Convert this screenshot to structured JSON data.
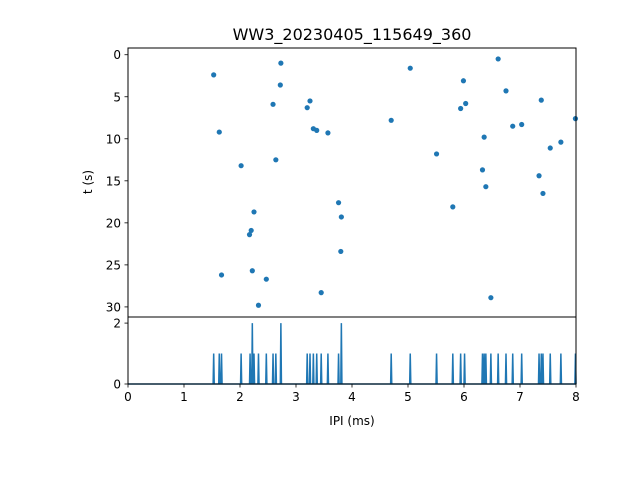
{
  "chart_data": [
    {
      "type": "scatter",
      "title": "WW3_20230405_115649_360",
      "xlabel": "",
      "ylabel": "t (s)",
      "xlim": [
        0,
        8
      ],
      "ylim": [
        31.2,
        -0.8
      ],
      "y_inverted": true,
      "yticks": [
        "0",
        "5",
        "10",
        "15",
        "20",
        "25",
        "30"
      ],
      "color": "#1f77b4",
      "points": [
        {
          "x": 1.53,
          "y": 2.4
        },
        {
          "x": 1.63,
          "y": 9.2
        },
        {
          "x": 1.67,
          "y": 26.2
        },
        {
          "x": 2.02,
          "y": 13.2
        },
        {
          "x": 2.17,
          "y": 21.4
        },
        {
          "x": 2.2,
          "y": 20.9
        },
        {
          "x": 2.22,
          "y": 25.7
        },
        {
          "x": 2.25,
          "y": 18.7
        },
        {
          "x": 2.33,
          "y": 29.8
        },
        {
          "x": 2.47,
          "y": 26.7
        },
        {
          "x": 2.59,
          "y": 5.9
        },
        {
          "x": 2.64,
          "y": 12.5
        },
        {
          "x": 2.72,
          "y": 3.6
        },
        {
          "x": 2.73,
          "y": 1.0
        },
        {
          "x": 3.2,
          "y": 6.3
        },
        {
          "x": 3.25,
          "y": 5.5
        },
        {
          "x": 3.31,
          "y": 8.8
        },
        {
          "x": 3.37,
          "y": 9.0
        },
        {
          "x": 3.45,
          "y": 28.3
        },
        {
          "x": 3.57,
          "y": 9.3
        },
        {
          "x": 3.76,
          "y": 17.6
        },
        {
          "x": 3.8,
          "y": 23.4
        },
        {
          "x": 3.81,
          "y": 19.3
        },
        {
          "x": 4.7,
          "y": 7.8
        },
        {
          "x": 5.04,
          "y": 1.6
        },
        {
          "x": 5.51,
          "y": 11.8
        },
        {
          "x": 5.8,
          "y": 18.1
        },
        {
          "x": 5.94,
          "y": 6.4
        },
        {
          "x": 5.99,
          "y": 3.1
        },
        {
          "x": 6.03,
          "y": 5.8
        },
        {
          "x": 6.33,
          "y": 13.7
        },
        {
          "x": 6.36,
          "y": 9.8
        },
        {
          "x": 6.39,
          "y": 15.7
        },
        {
          "x": 6.48,
          "y": 28.9
        },
        {
          "x": 6.61,
          "y": 0.5
        },
        {
          "x": 6.75,
          "y": 4.3
        },
        {
          "x": 6.87,
          "y": 8.5
        },
        {
          "x": 7.03,
          "y": 8.3
        },
        {
          "x": 7.34,
          "y": 14.4
        },
        {
          "x": 7.38,
          "y": 5.4
        },
        {
          "x": 7.41,
          "y": 16.5
        },
        {
          "x": 7.54,
          "y": 11.1
        },
        {
          "x": 7.73,
          "y": 10.4
        },
        {
          "x": 7.99,
          "y": 7.6
        }
      ]
    },
    {
      "type": "line",
      "title": "",
      "xlabel": "IPI (ms)",
      "ylabel": "",
      "xlim": [
        0,
        8
      ],
      "ylim": [
        0,
        2.2
      ],
      "xticks": [
        "0",
        "1",
        "2",
        "3",
        "4",
        "5",
        "6",
        "7",
        "8"
      ],
      "yticks": [
        "0",
        "2"
      ],
      "color": "#1f77b4",
      "spikes": [
        {
          "x": 1.53,
          "y": 1
        },
        {
          "x": 1.63,
          "y": 1
        },
        {
          "x": 1.67,
          "y": 1
        },
        {
          "x": 2.02,
          "y": 1
        },
        {
          "x": 2.18,
          "y": 1
        },
        {
          "x": 2.22,
          "y": 2
        },
        {
          "x": 2.25,
          "y": 1
        },
        {
          "x": 2.33,
          "y": 1
        },
        {
          "x": 2.47,
          "y": 1
        },
        {
          "x": 2.59,
          "y": 1
        },
        {
          "x": 2.64,
          "y": 1
        },
        {
          "x": 2.73,
          "y": 2
        },
        {
          "x": 3.2,
          "y": 1
        },
        {
          "x": 3.25,
          "y": 1
        },
        {
          "x": 3.31,
          "y": 1
        },
        {
          "x": 3.37,
          "y": 1
        },
        {
          "x": 3.45,
          "y": 1
        },
        {
          "x": 3.57,
          "y": 1
        },
        {
          "x": 3.76,
          "y": 1
        },
        {
          "x": 3.81,
          "y": 2
        },
        {
          "x": 4.7,
          "y": 1
        },
        {
          "x": 5.04,
          "y": 1
        },
        {
          "x": 5.51,
          "y": 1
        },
        {
          "x": 5.8,
          "y": 1
        },
        {
          "x": 5.94,
          "y": 1
        },
        {
          "x": 6.01,
          "y": 1
        },
        {
          "x": 6.33,
          "y": 1
        },
        {
          "x": 6.36,
          "y": 1
        },
        {
          "x": 6.39,
          "y": 1
        },
        {
          "x": 6.48,
          "y": 1
        },
        {
          "x": 6.61,
          "y": 1
        },
        {
          "x": 6.75,
          "y": 1
        },
        {
          "x": 6.87,
          "y": 1
        },
        {
          "x": 7.03,
          "y": 1
        },
        {
          "x": 7.34,
          "y": 1
        },
        {
          "x": 7.38,
          "y": 1
        },
        {
          "x": 7.41,
          "y": 1
        },
        {
          "x": 7.54,
          "y": 1
        },
        {
          "x": 7.73,
          "y": 1
        },
        {
          "x": 7.99,
          "y": 1
        }
      ]
    }
  ]
}
